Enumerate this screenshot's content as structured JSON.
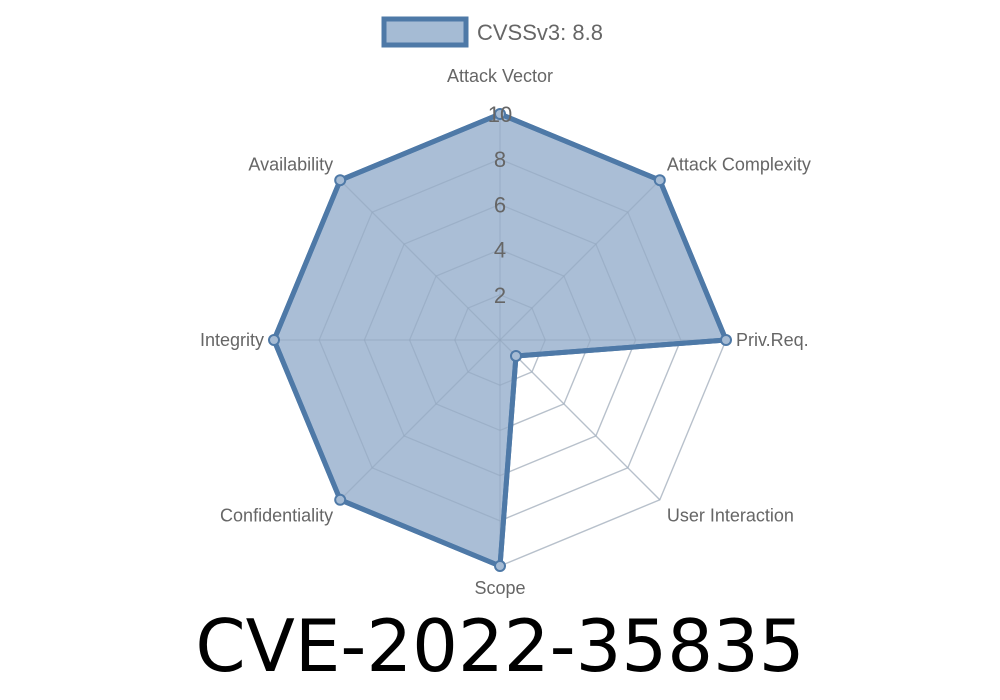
{
  "chart_data": {
    "type": "radar",
    "axes": [
      "Attack Vector",
      "Attack Complexity",
      "Priv.Req.",
      "User Interaction",
      "Scope",
      "Confidentiality",
      "Integrity",
      "Availability"
    ],
    "series": [
      {
        "name": "CVSSv3: 8.8",
        "values": [
          10,
          10,
          10,
          1,
          10,
          10,
          10,
          10
        ]
      }
    ],
    "rlim": [
      0,
      10
    ],
    "ticks": [
      "2",
      "4",
      "6",
      "8",
      "10"
    ],
    "tick_values": [
      2,
      4,
      6,
      8,
      10
    ],
    "grid": true,
    "legend_position": "top",
    "colors": {
      "line": "#4e79a7",
      "fill": "#a5bbd4",
      "grid": "#dddddd"
    }
  },
  "title": "CVE-2022-35835"
}
